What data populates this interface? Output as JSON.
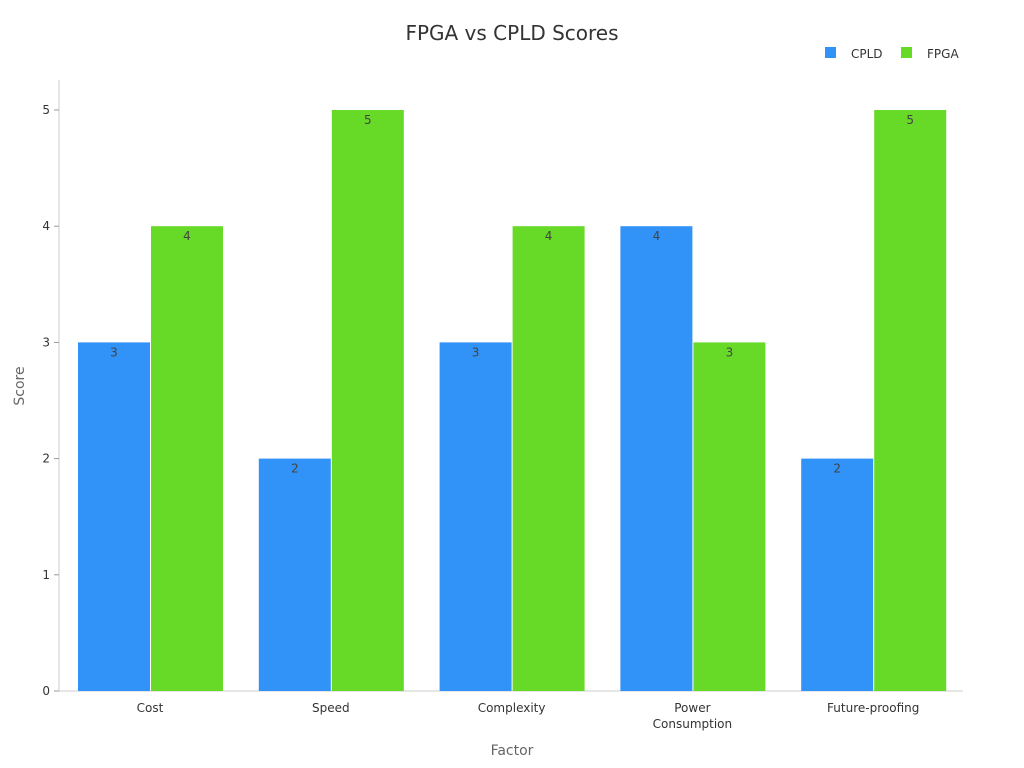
{
  "chart_data": {
    "type": "bar",
    "title": "FPGA vs CPLD Scores",
    "xlabel": "Factor",
    "ylabel": "Score",
    "categories": [
      "Cost",
      "Speed",
      "Complexity",
      "Power Consumption",
      "Future-proofing"
    ],
    "series": [
      {
        "name": "CPLD",
        "color": "#3192F7",
        "values": [
          3,
          2,
          3,
          4,
          2
        ]
      },
      {
        "name": "FPGA",
        "color": "#66DA27",
        "values": [
          4,
          5,
          4,
          3,
          5
        ]
      }
    ],
    "ylim": [
      0,
      5
    ],
    "yticks": [
      0,
      1,
      2,
      3,
      4,
      5
    ],
    "grid": false,
    "legend": "top-right",
    "data_labels": true
  }
}
